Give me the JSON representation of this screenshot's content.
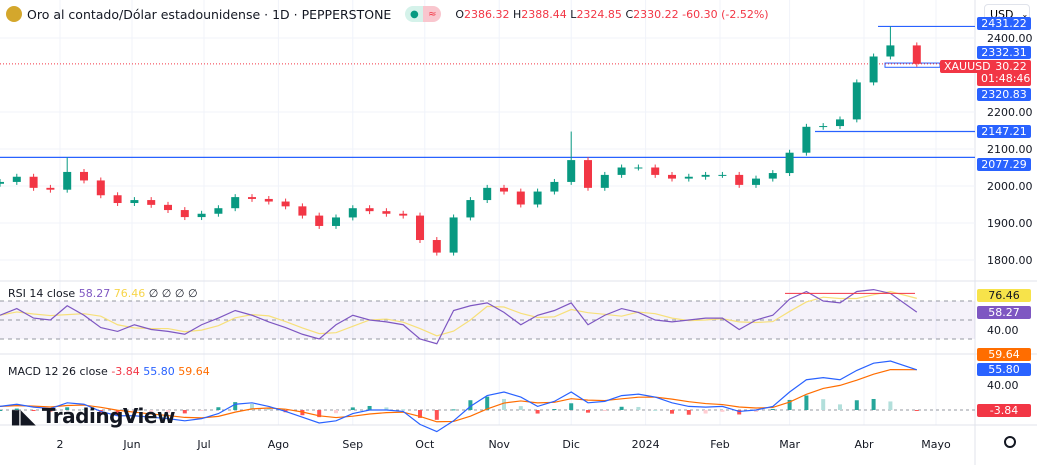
{
  "header": {
    "title": "Oro al contado/Dólar estadounidense · 1D · PEPPERSTONE",
    "o_label": "O",
    "o": "2386.32",
    "h_label": "H",
    "h": "2388.44",
    "l_label": "L",
    "l": "2324.85",
    "c_label": "C",
    "c": "2330.22",
    "change": "-60.30 (-2.52%)",
    "market_icon": "dot-icon",
    "approx_icon": "≈"
  },
  "currency_selector": "USD",
  "colors": {
    "up": "#089981",
    "down": "#f23645",
    "line": "#2962ff",
    "rsi": "#7e57c2",
    "rsi_ma": "#f7e07a",
    "macd": "#2962ff",
    "signal": "#ff6d00"
  },
  "price_axis": {
    "ticks": [
      "2400.00",
      "2200.00",
      "2100.00",
      "2000.00",
      "1900.00",
      "1800.00"
    ],
    "tick_values": [
      2400,
      2200,
      2100,
      2000,
      1900,
      1800
    ]
  },
  "badges": {
    "top_line": "2431.22",
    "box_high": "2332.31",
    "symbol": "XAUUSD",
    "last": "2330.22",
    "countdown": "01:48:46",
    "box_low": "2320.83",
    "mid_line": "2147.21",
    "low_line": "2077.29"
  },
  "rsi": {
    "label": "RSI",
    "params": "14 close",
    "value": "58.27",
    "ma_value": "76.46",
    "na": [
      "∅",
      "∅",
      "∅",
      "∅"
    ],
    "axis_label": "40.00",
    "levels": [
      70,
      50,
      30
    ]
  },
  "macd": {
    "label": "MACD",
    "params": "12 26 close",
    "hist": "-3.84",
    "macd": "55.80",
    "signal": "59.64",
    "axis_label": "40.00"
  },
  "time_axis": [
    {
      "label": "2",
      "date": "2023-05-02"
    },
    {
      "label": "Jun",
      "date": "2023-06-01"
    },
    {
      "label": "Jul",
      "date": "2023-07-01"
    },
    {
      "label": "Ago",
      "date": "2023-08-01"
    },
    {
      "label": "Sep",
      "date": "2023-09-01"
    },
    {
      "label": "Oct",
      "date": "2023-10-01"
    },
    {
      "label": "Nov",
      "date": "2023-11-01"
    },
    {
      "label": "Dic",
      "date": "2023-12-01"
    },
    {
      "label": "2024",
      "date": "2024-01-01"
    },
    {
      "label": "Feb",
      "date": "2024-02-01"
    },
    {
      "label": "Mar",
      "date": "2024-03-01"
    },
    {
      "label": "Abr",
      "date": "2024-04-01"
    },
    {
      "label": "Mayo",
      "date": "2024-05-01"
    }
  ],
  "watermark": "TradingView",
  "chart_data": {
    "type": "candlestick",
    "symbol": "XAUUSD",
    "interval": "1D",
    "ylim": [
      1760,
      2440
    ],
    "dates": [
      "2023-04-07",
      "2023-04-14",
      "2023-04-21",
      "2023-04-28",
      "2023-05-05",
      "2023-05-12",
      "2023-05-19",
      "2023-05-26",
      "2023-06-02",
      "2023-06-09",
      "2023-06-16",
      "2023-06-23",
      "2023-06-30",
      "2023-07-07",
      "2023-07-14",
      "2023-07-21",
      "2023-07-28",
      "2023-08-04",
      "2023-08-11",
      "2023-08-18",
      "2023-08-25",
      "2023-09-01",
      "2023-09-08",
      "2023-09-15",
      "2023-09-22",
      "2023-09-29",
      "2023-10-06",
      "2023-10-13",
      "2023-10-20",
      "2023-10-27",
      "2023-11-03",
      "2023-11-10",
      "2023-11-17",
      "2023-11-24",
      "2023-12-01",
      "2023-12-08",
      "2023-12-15",
      "2023-12-22",
      "2023-12-29",
      "2024-01-05",
      "2024-01-12",
      "2024-01-19",
      "2024-01-26",
      "2024-02-02",
      "2024-02-09",
      "2024-02-16",
      "2024-02-23",
      "2024-03-01",
      "2024-03-08",
      "2024-03-15",
      "2024-03-22",
      "2024-03-29",
      "2024-04-05",
      "2024-04-12",
      "2024-04-23"
    ],
    "close": [
      2011,
      2025,
      1995,
      1990,
      2038,
      2015,
      1975,
      1954,
      1962,
      1949,
      1935,
      1916,
      1925,
      1940,
      1970,
      1965,
      1958,
      1945,
      1920,
      1892,
      1915,
      1940,
      1932,
      1925,
      1920,
      1854,
      1820,
      1915,
      1962,
      1995,
      1985,
      1950,
      1985,
      2011,
      2070,
      1995,
      2030,
      2050,
      2050,
      2030,
      2020,
      2025,
      2030,
      2030,
      2003,
      2020,
      2035,
      2090,
      2160,
      2162,
      2180,
      2280,
      2350,
      2380,
      2330.22
    ],
    "notable_highs": [
      {
        "date": "2023-05-05",
        "high": 2077.29
      },
      {
        "date": "2023-12-01",
        "high": 2147.21
      },
      {
        "date": "2024-04-12",
        "high": 2431.22
      }
    ],
    "horizontal_lines": [
      2431.22,
      2332.31,
      2320.83,
      2147.21,
      2077.29
    ],
    "last_price": 2330.22,
    "rsi": [
      55,
      62,
      52,
      50,
      65,
      55,
      42,
      38,
      45,
      40,
      38,
      35,
      45,
      52,
      60,
      55,
      48,
      42,
      35,
      30,
      45,
      55,
      50,
      48,
      45,
      30,
      25,
      60,
      65,
      68,
      58,
      45,
      55,
      60,
      68,
      45,
      55,
      62,
      58,
      50,
      48,
      50,
      52,
      52,
      40,
      50,
      55,
      72,
      80,
      70,
      68,
      80,
      82,
      78,
      58.27
    ],
    "macd": [
      5,
      8,
      4,
      2,
      10,
      8,
      -2,
      -8,
      -8,
      -10,
      -12,
      -15,
      -12,
      -5,
      8,
      10,
      5,
      -2,
      -10,
      -18,
      -15,
      -5,
      0,
      0,
      -2,
      -20,
      -30,
      -15,
      5,
      20,
      25,
      18,
      5,
      12,
      25,
      10,
      12,
      20,
      22,
      18,
      10,
      5,
      4,
      5,
      -2,
      0,
      5,
      25,
      42,
      45,
      42,
      55,
      65,
      68,
      55.8
    ]
  }
}
